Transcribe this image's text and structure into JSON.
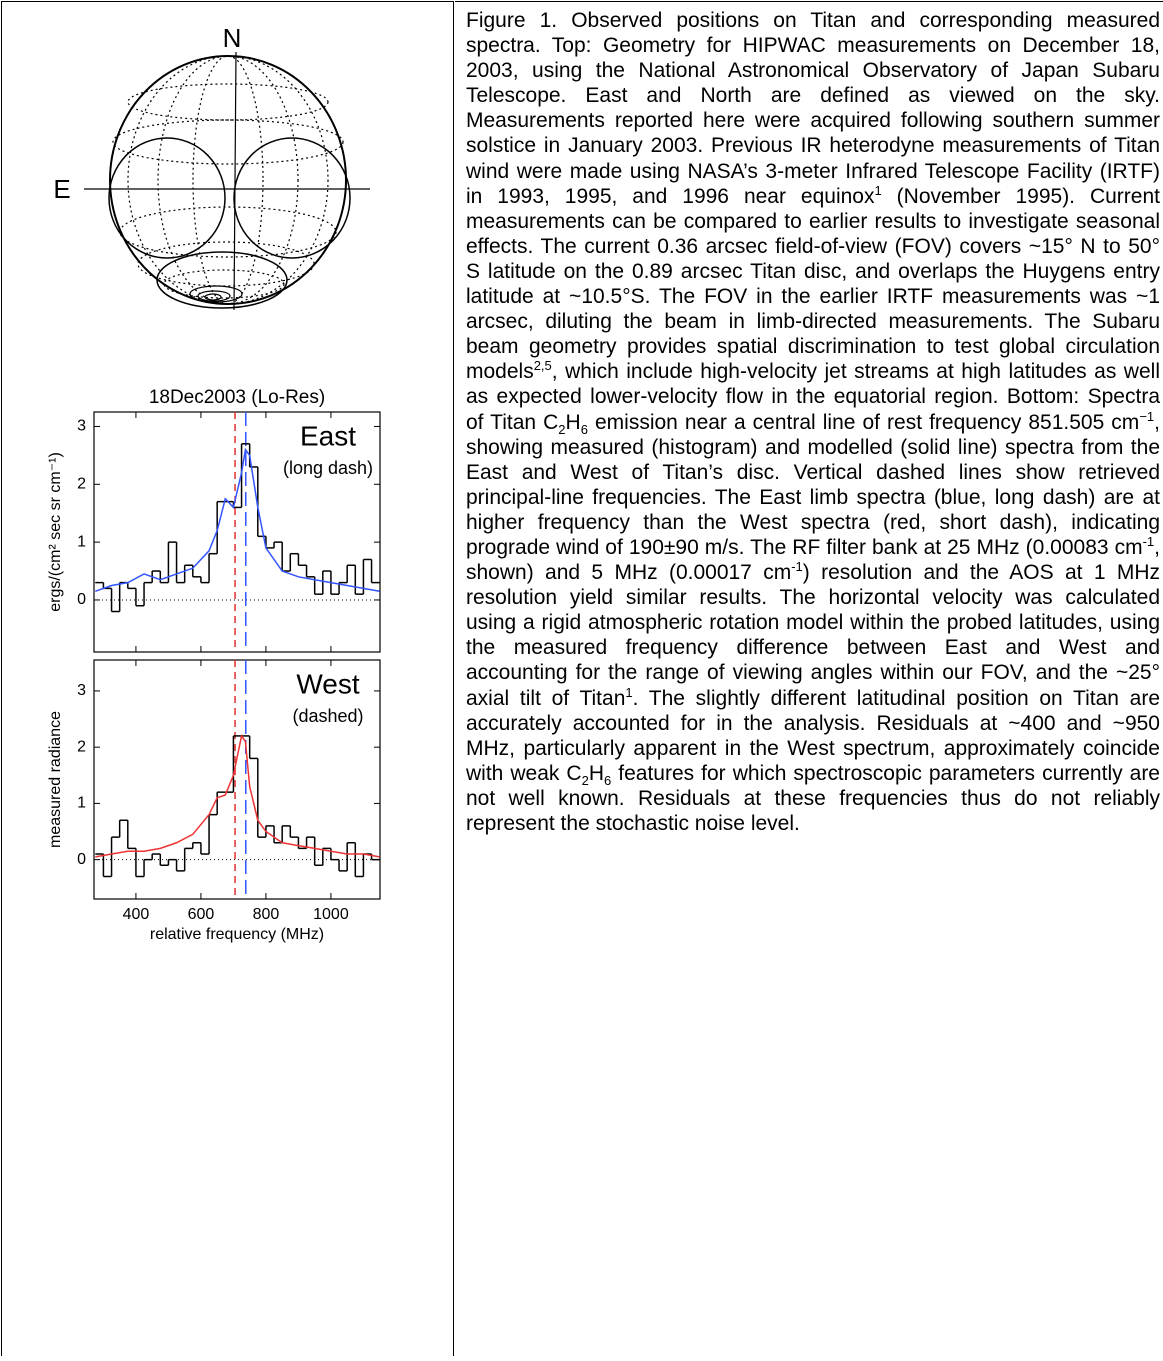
{
  "globe": {
    "north": "N",
    "east": "E"
  },
  "chart_data": [
    {
      "type": "histogram",
      "title": "18Dec2003 (Lo-Res)",
      "ylabel": "ergs/(cm² sec sr cm⁻¹)",
      "annotations": [
        "East",
        "(long dash)"
      ],
      "bins": [
        275,
        300,
        325,
        350,
        375,
        400,
        425,
        450,
        475,
        500,
        525,
        550,
        575,
        600,
        625,
        650,
        675,
        700,
        725,
        750,
        775,
        800,
        825,
        850,
        875,
        900,
        925,
        950,
        975,
        1000,
        1025,
        1050,
        1075,
        1100,
        1125,
        1150
      ],
      "values": [
        0.3,
        0.2,
        -0.2,
        0.3,
        0.2,
        -0.1,
        0.3,
        0.5,
        0.3,
        1.0,
        0.3,
        0.6,
        0.4,
        0.3,
        0.8,
        1.7,
        1.7,
        1.6,
        2.7,
        2.3,
        1.1,
        0.9,
        1.0,
        0.5,
        0.8,
        0.6,
        0.4,
        0.1,
        0.5,
        0.1,
        0.3,
        0.6,
        0.1,
        0.7,
        0.3
      ],
      "color": "#000000",
      "model_x": [
        275,
        325,
        375,
        425,
        475,
        525,
        575,
        625,
        650,
        675,
        700,
        725,
        737,
        750,
        775,
        800,
        850,
        900,
        950,
        1000,
        1050,
        1100,
        1150
      ],
      "model_values": [
        0.15,
        0.25,
        0.3,
        0.45,
        0.35,
        0.45,
        0.55,
        0.85,
        1.2,
        1.75,
        1.6,
        2.2,
        2.6,
        2.5,
        1.6,
        0.9,
        0.5,
        0.4,
        0.35,
        0.3,
        0.25,
        0.2,
        0.15
      ],
      "model_color": "#3355ff",
      "vlines": [
        {
          "value": 705,
          "color": "#e03030",
          "dash": "short"
        },
        {
          "value": 738,
          "color": "#3355ff",
          "dash": "long"
        }
      ],
      "xlim": [
        271,
        1151
      ],
      "ylim": [
        -0.9,
        3.25
      ],
      "yticks": [
        0,
        1,
        2,
        3
      ],
      "zero_line": true
    },
    {
      "type": "histogram",
      "ylabel": "measured radiance",
      "xlabel": "relative frequency (MHz)",
      "annotations": [
        "West",
        "(dashed)"
      ],
      "bins": [
        275,
        300,
        325,
        350,
        375,
        400,
        425,
        450,
        475,
        500,
        525,
        550,
        575,
        600,
        625,
        650,
        675,
        700,
        725,
        750,
        775,
        800,
        825,
        850,
        875,
        900,
        925,
        950,
        975,
        1000,
        1025,
        1050,
        1075,
        1100,
        1125,
        1150
      ],
      "values": [
        0.1,
        -0.3,
        0.4,
        0.7,
        0.2,
        -0.3,
        0.0,
        0.1,
        -0.1,
        0.0,
        -0.2,
        0.2,
        0.3,
        0.1,
        0.8,
        1.2,
        1.2,
        2.2,
        2.2,
        1.8,
        0.4,
        0.6,
        0.3,
        0.6,
        0.4,
        0.2,
        0.4,
        -0.1,
        0.2,
        0.0,
        -0.2,
        0.3,
        -0.3,
        0.1,
        0.0
      ],
      "color": "#000000",
      "model_x": [
        275,
        325,
        375,
        425,
        475,
        525,
        575,
        625,
        650,
        675,
        700,
        725,
        737,
        750,
        775,
        800,
        850,
        900,
        950,
        1000,
        1050,
        1100,
        1150
      ],
      "model_values": [
        0.05,
        0.1,
        0.15,
        0.15,
        0.2,
        0.3,
        0.45,
        0.8,
        1.1,
        1.15,
        1.5,
        2.2,
        2.1,
        1.3,
        0.7,
        0.5,
        0.3,
        0.25,
        0.2,
        0.15,
        0.1,
        0.1,
        0.05
      ],
      "model_color": "#ee3333",
      "vlines": [
        {
          "value": 705,
          "color": "#e03030",
          "dash": "short"
        },
        {
          "value": 738,
          "color": "#3355ff",
          "dash": "long"
        }
      ],
      "xlim": [
        271,
        1151
      ],
      "ylim": [
        -0.7,
        3.55
      ],
      "yticks": [
        0,
        1,
        2,
        3
      ],
      "xticks": [
        400,
        600,
        800,
        1000
      ],
      "zero_line": true
    }
  ],
  "caption": [
    {
      "t": "Figure 1. Observed positions on Titan and corresponding measured spectra. Top: Geometry for HIPWAC measurements on December 18, 2003, using the National Astronomical Observatory of Japan Subaru Telescope. East and North are defined as viewed on the sky. Measurements reported here were acquired following southern summer solstice in January 2003. Previous IR heterodyne measurements of Titan wind were made using NASA’s 3-meter Infrared Telescope Facility (IRTF) in 1993, 1995, and 1996 near equinox"
    },
    {
      "sup": "1"
    },
    {
      "t": " (November 1995). Current measurements can be compared to earlier results to investigate seasonal effects. The current 0.36 arcsec field-of-view (FOV) covers ~15° N to 50° S latitude on the 0.89 arcsec Titan disc, and overlaps the Huygens entry latitude at ~10.5°S. The FOV in the earlier IRTF measurements was ~1 arcsec, diluting the beam in limb-directed measurements. The Subaru beam geometry provides spatial discrimination to test global circulation models"
    },
    {
      "sup": "2,5"
    },
    {
      "t": ", which include high-velocity jet streams at high latitudes as well as expected lower-velocity flow in the equatorial region. Bottom: Spectra of Titan C"
    },
    {
      "sub": "2"
    },
    {
      "t": "H"
    },
    {
      "sub": "6"
    },
    {
      "t": " emission near a central line of rest frequency 851.505 cm"
    },
    {
      "sup": "−1"
    },
    {
      "t": ", showing measured (histogram) and modelled (solid line) spectra from the East and West of Titan’s disc. Vertical dashed lines show retrieved principal-line frequencies. The East limb spectra (blue, long dash) are at higher frequency than the West spectra (red, short dash), indicating prograde wind of 190±90 m/s. The RF filter bank at 25 MHz (0.00083 cm"
    },
    {
      "sup": "-1"
    },
    {
      "t": ", shown) and 5 MHz (0.00017 cm"
    },
    {
      "sup": "-1"
    },
    {
      "t": ") resolution and the AOS at 1 MHz resolution yield similar results. The horizontal velocity was calculated using a rigid atmospheric rotation model within the probed latitudes, using the measured frequency difference between East and West and accounting for the range of viewing angles within our FOV, and the ~25° axial tilt of Titan"
    },
    {
      "sup": "1"
    },
    {
      "t": ". The slightly different latitudinal position on Titan are accurately accounted for in the analysis. Residuals at ~400 and ~950 MHz, particularly apparent in the West spectrum, approximately coincide with weak C"
    },
    {
      "sub": "2"
    },
    {
      "t": "H"
    },
    {
      "sub": "6"
    },
    {
      "t": " features for which spectroscopic parameters currently are not well known. Residuals at these frequencies thus do not reliably represent the stochastic noise level."
    }
  ]
}
